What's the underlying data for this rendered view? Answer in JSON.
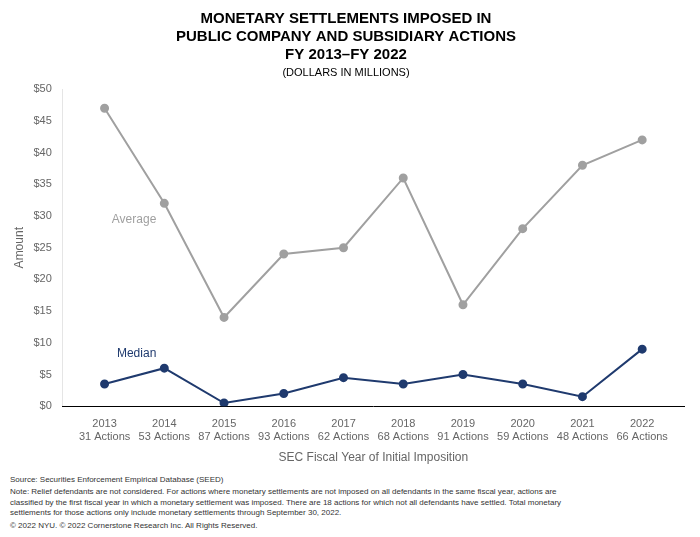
{
  "chart_data": {
    "type": "line",
    "title": [
      "MONETARY SETTLEMENTS IMPOSED IN",
      "PUBLIC COMPANY AND SUBSIDIARY ACTIONS",
      "FY 2013–FY 2022"
    ],
    "subtitle": "(DOLLARS IN MILLIONS)",
    "x_label": "SEC Fiscal Year of Initial Imposition",
    "y_label": "Amount",
    "x": [
      2013,
      2014,
      2015,
      2016,
      2017,
      2018,
      2019,
      2020,
      2021,
      2022
    ],
    "x_tick_sublabels": [
      "31 Actions",
      "53 Actions",
      "87 Actions",
      "93 Actions",
      "62 Actions",
      "68 Actions",
      "91 Actions",
      "59 Actions",
      "48 Actions",
      "66 Actions"
    ],
    "series": [
      {
        "name": "Average",
        "color": "#a0a0a0",
        "marker": "circle",
        "values": [
          47,
          32,
          14,
          24,
          25,
          36,
          16,
          28,
          38,
          42
        ]
      },
      {
        "name": "Median",
        "color": "#1f3a6e",
        "marker": "circle",
        "values": [
          3.5,
          6,
          0.5,
          2,
          4.5,
          3.5,
          5,
          3.5,
          1.5,
          9
        ]
      }
    ],
    "xlim": [
      2012.3,
      2022.7
    ],
    "xticks": [
      2013,
      2014,
      2015,
      2016,
      2017,
      2018,
      2019,
      2020,
      2021,
      2022
    ],
    "ylim": [
      0,
      50
    ],
    "yticks": [
      {
        "value": 0,
        "label": "$0"
      },
      {
        "value": 5,
        "label": "$5"
      },
      {
        "value": 10,
        "label": "$10"
      },
      {
        "value": 15,
        "label": "$15"
      },
      {
        "value": 20,
        "label": "$20"
      },
      {
        "value": 25,
        "label": "$25"
      },
      {
        "value": 30,
        "label": "$30"
      },
      {
        "value": 35,
        "label": "$35"
      },
      {
        "value": 40,
        "label": "$40"
      },
      {
        "value": 45,
        "label": "$45"
      },
      {
        "value": 50,
        "label": "$50"
      }
    ],
    "grid": false,
    "notes": [
      "Source: Securities Enforcement Empirical Database (SEED)",
      "Note: Relief defendants are not considered. For actions where monetary settlements are not imposed on all defendants in the same fiscal year, actions are\nclassified by the first fiscal year in which a monetary settlement was imposed. There are 18 actions for which not all defendants have settled. Total monetary\nsettlements for those actions only include monetary settlements through September 30, 2022.",
      "© 2022 NYU. © 2022 Cornerstone Research Inc. All Rights Reserved."
    ]
  }
}
